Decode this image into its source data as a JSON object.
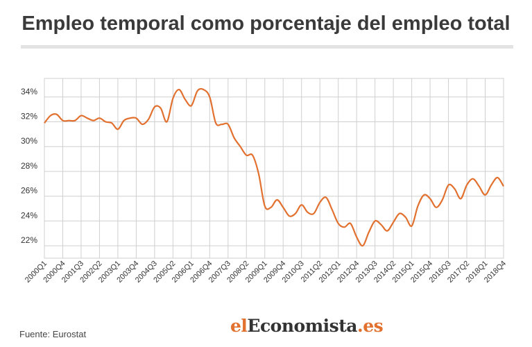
{
  "title": "Empleo temporal como porcentaje del empleo total",
  "source": "Fuente: Eurostat",
  "logo": {
    "part1": "el",
    "part2": "Economista",
    "part3": ".es"
  },
  "colors": {
    "line": "#e2702e",
    "grid": "#cfcfcf",
    "text": "#333333"
  },
  "chart_data": {
    "type": "line",
    "title": "Empleo temporal como porcentaje del empleo total",
    "ylim": [
      21,
      35.5
    ],
    "y_ticks": [
      22,
      24,
      26,
      28,
      30,
      32,
      34
    ],
    "y_tick_labels": [
      "22%",
      "24%",
      "26%",
      "28%",
      "30%",
      "32%",
      "34%"
    ],
    "x_tick_labels": [
      "2000Q1",
      "2000Q4",
      "2001Q3",
      "2002Q2",
      "2003Q1",
      "2003Q4",
      "2004Q3",
      "2005Q2",
      "2006Q1",
      "2006Q4",
      "2007Q3",
      "2008Q2",
      "2009Q1",
      "2009Q4",
      "2010Q3",
      "2011Q2",
      "2012Q1",
      "2012Q4",
      "2013Q3",
      "2014Q2",
      "2015Q1",
      "2015Q4",
      "2016Q3",
      "2017Q2",
      "2018Q1",
      "2018Q4"
    ],
    "grid": true,
    "legend": "none",
    "series": [
      {
        "x": [
          "2000Q1",
          "2000Q2",
          "2000Q3",
          "2000Q4",
          "2001Q1",
          "2001Q2",
          "2001Q3",
          "2001Q4",
          "2002Q1",
          "2002Q2",
          "2002Q3",
          "2002Q4",
          "2003Q1",
          "2003Q2",
          "2003Q3",
          "2003Q4",
          "2004Q1",
          "2004Q2",
          "2004Q3",
          "2004Q4",
          "2005Q1",
          "2005Q2",
          "2005Q3",
          "2005Q4",
          "2006Q1",
          "2006Q2",
          "2006Q3",
          "2006Q4",
          "2007Q1",
          "2007Q2",
          "2007Q3",
          "2007Q4",
          "2008Q1",
          "2008Q2",
          "2008Q3",
          "2008Q4",
          "2009Q1",
          "2009Q2",
          "2009Q3",
          "2009Q4",
          "2010Q1",
          "2010Q2",
          "2010Q3",
          "2010Q4",
          "2011Q1",
          "2011Q2",
          "2011Q3",
          "2011Q4",
          "2012Q1",
          "2012Q2",
          "2012Q3",
          "2012Q4",
          "2013Q1",
          "2013Q2",
          "2013Q3",
          "2013Q4",
          "2014Q1",
          "2014Q2",
          "2014Q3",
          "2014Q4",
          "2015Q1",
          "2015Q2",
          "2015Q3",
          "2015Q4",
          "2016Q1",
          "2016Q2",
          "2016Q3",
          "2016Q4",
          "2017Q1",
          "2017Q2",
          "2017Q3",
          "2017Q4",
          "2018Q1",
          "2018Q2",
          "2018Q3",
          "2018Q4"
        ],
        "values": [
          31.9,
          32.5,
          32.6,
          32.1,
          32.1,
          32.1,
          32.5,
          32.3,
          32.1,
          32.3,
          32.0,
          31.9,
          31.4,
          32.1,
          32.3,
          32.3,
          31.8,
          32.2,
          33.2,
          33.1,
          32.0,
          33.9,
          34.6,
          33.8,
          33.3,
          34.5,
          34.6,
          34.0,
          31.9,
          31.8,
          31.8,
          30.7,
          30.0,
          29.3,
          29.3,
          27.8,
          25.2,
          25.1,
          25.7,
          25.1,
          24.4,
          24.6,
          25.3,
          24.7,
          24.6,
          25.5,
          25.9,
          24.9,
          23.8,
          23.5,
          23.8,
          22.7,
          22.0,
          23.1,
          24.0,
          23.7,
          23.2,
          23.9,
          24.6,
          24.3,
          23.6,
          25.2,
          26.1,
          25.8,
          25.1,
          25.7,
          26.9,
          26.6,
          25.8,
          26.9,
          27.4,
          26.8,
          26.1,
          26.9,
          27.5,
          26.8
        ]
      }
    ]
  }
}
